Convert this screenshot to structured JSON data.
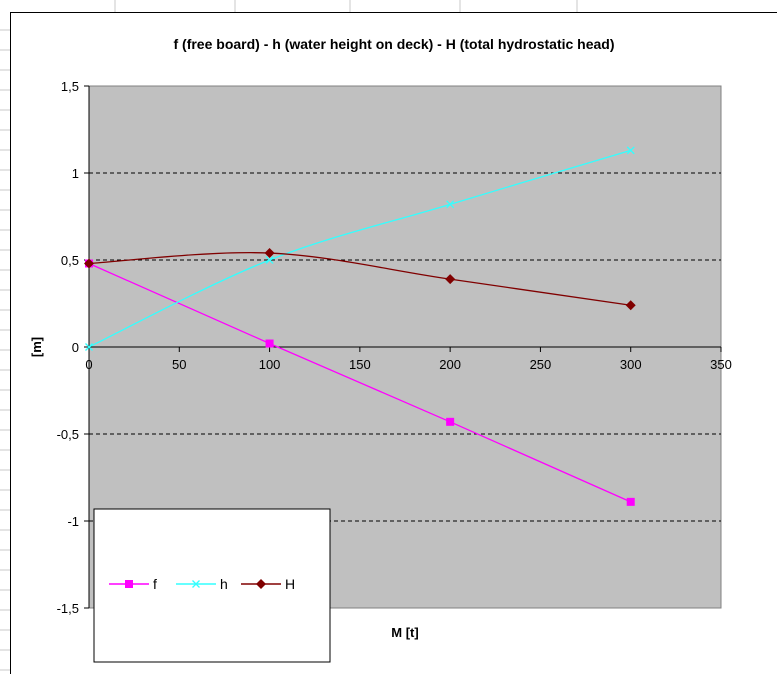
{
  "chart_data": {
    "type": "line",
    "title": "f (free board) - h (water height on deck) - H (total hydrostatic head)",
    "xlabel": "M [t]",
    "ylabel": "[m]",
    "xlim": [
      0,
      350
    ],
    "ylim": [
      -1.5,
      1.5
    ],
    "x_ticks": [
      0,
      50,
      100,
      150,
      200,
      250,
      300,
      350
    ],
    "y_ticks": [
      1.5,
      1,
      0.5,
      0,
      -0.5,
      -1,
      -1.5
    ],
    "x_tick_labels": [
      "0",
      "50",
      "100",
      "150",
      "200",
      "250",
      "300",
      "350"
    ],
    "y_tick_labels": [
      "1,5",
      "1",
      "0,5",
      "0",
      "-0,5",
      "-1",
      "-1,5"
    ],
    "grid": "horizontal dashed",
    "legend_position": "bottom-left",
    "plot_background": "#c0c0c0",
    "x": [
      0,
      100,
      200,
      300
    ],
    "series": [
      {
        "name": "f",
        "values": [
          0.48,
          0.02,
          -0.43,
          -0.89
        ],
        "color": "#ff00ff",
        "marker": "square",
        "smooth": false
      },
      {
        "name": "h",
        "values": [
          0.0,
          0.5,
          0.82,
          1.13
        ],
        "color": "#33ffff",
        "marker": "x",
        "smooth": true
      },
      {
        "name": "H",
        "values": [
          0.48,
          0.54,
          0.39,
          0.24
        ],
        "color": "#800000",
        "marker": "diamond",
        "smooth": true
      }
    ]
  }
}
